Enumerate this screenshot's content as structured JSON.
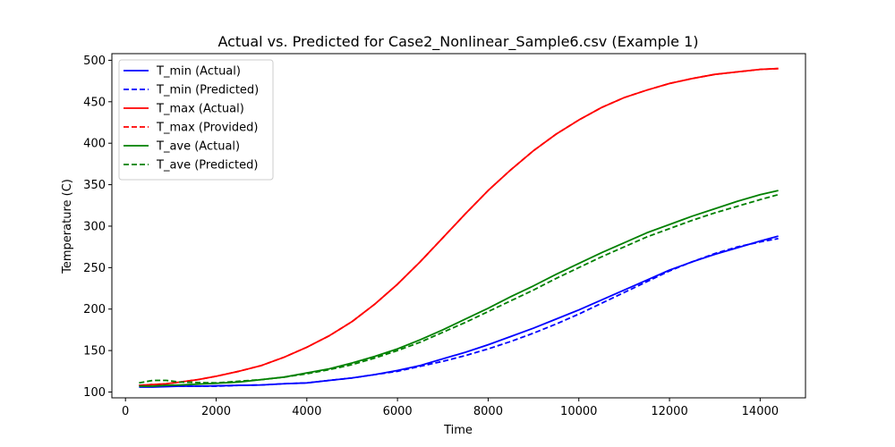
{
  "chart_data": {
    "type": "line",
    "title": "Actual vs. Predicted for Case2_Nonlinear_Sample6.csv (Example 1)",
    "xlabel": "Time",
    "ylabel": "Temperature (C)",
    "xlim": [
      -300,
      15000
    ],
    "ylim": [
      93,
      508
    ],
    "xticks": [
      0,
      2000,
      4000,
      6000,
      8000,
      10000,
      12000,
      14000
    ],
    "yticks": [
      100,
      150,
      200,
      250,
      300,
      350,
      400,
      450,
      500
    ],
    "grid": false,
    "legend_position": "top-left",
    "x": [
      300,
      600,
      900,
      1200,
      1600,
      2000,
      2500,
      3000,
      3500,
      4000,
      4500,
      5000,
      5500,
      6000,
      6500,
      7000,
      7500,
      8000,
      8500,
      9000,
      9500,
      10000,
      10500,
      11000,
      11500,
      12000,
      12500,
      13000,
      13500,
      14000,
      14400
    ],
    "series": [
      {
        "name": "T_min (Actual)",
        "color": "#0000ff",
        "dash": "solid",
        "values": [
          106,
          106,
          106.5,
          107,
          107,
          107.5,
          108,
          108.5,
          110,
          111,
          114,
          117,
          121,
          126,
          132,
          140,
          148,
          157,
          167,
          177,
          188,
          199,
          211,
          223,
          235,
          247,
          257,
          266,
          274,
          282,
          288
        ]
      },
      {
        "name": "T_min (Predicted)",
        "color": "#0000ff",
        "dash": "dashed",
        "values": [
          108,
          109,
          108,
          107,
          107,
          107,
          108,
          108.5,
          110,
          111,
          114,
          117,
          121,
          125,
          131,
          137,
          144,
          152,
          161,
          171,
          182,
          194,
          207,
          220,
          233,
          246,
          257,
          267,
          275,
          281,
          285
        ]
      },
      {
        "name": "T_max (Actual)",
        "color": "#ff0000",
        "dash": "solid",
        "values": [
          108,
          109,
          110,
          112,
          115,
          119,
          125,
          132,
          142,
          154,
          168,
          185,
          206,
          230,
          257,
          286,
          315,
          343,
          368,
          391,
          411,
          428,
          443,
          455,
          464,
          472,
          478,
          483,
          486,
          489,
          490
        ]
      },
      {
        "name": "T_max (Provided)",
        "color": "#ff0000",
        "dash": "dashed",
        "values": [
          108,
          109,
          110,
          112,
          115,
          119,
          125,
          132,
          142,
          154,
          168,
          185,
          206,
          230,
          257,
          286,
          315,
          343,
          368,
          391,
          411,
          428,
          443,
          455,
          464,
          472,
          478,
          483,
          486,
          489,
          490
        ]
      },
      {
        "name": "T_ave (Actual)",
        "color": "#008000",
        "dash": "solid",
        "values": [
          107,
          107,
          108,
          108.5,
          109.5,
          110.5,
          112,
          115,
          118,
          123,
          128,
          135,
          143,
          152,
          163,
          175,
          188,
          201,
          215,
          228,
          242,
          255,
          268,
          280,
          292,
          302,
          312,
          321,
          330,
          338,
          343
        ]
      },
      {
        "name": "T_ave (Predicted)",
        "color": "#008000",
        "dash": "dashed",
        "values": [
          111,
          114,
          114,
          112,
          111.5,
          111,
          113,
          115,
          118,
          122,
          127,
          133,
          141,
          150,
          160,
          172,
          184,
          197,
          210,
          223,
          237,
          250,
          263,
          275,
          287,
          297,
          307,
          316,
          324,
          332,
          338
        ]
      }
    ]
  }
}
